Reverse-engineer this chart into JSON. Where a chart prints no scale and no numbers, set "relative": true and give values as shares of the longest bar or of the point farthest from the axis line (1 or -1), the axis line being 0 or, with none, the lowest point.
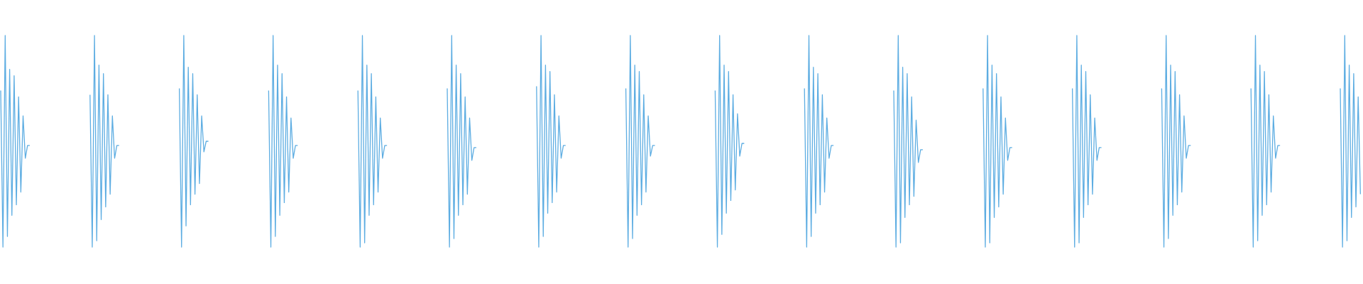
{
  "chart_data": [
    {
      "type": "line",
      "relative": true,
      "marker": "none",
      "line_style": "solid",
      "categories": [
        null,
        null,
        null,
        null,
        null,
        null,
        null,
        null,
        null,
        null,
        null,
        null,
        null,
        null
      ],
      "series": [
        {
          "color": "#5dade2",
          "values": [
            0.74,
            0,
            1,
            0.05,
            0.84,
            0.15,
            0.81,
            0.2,
            0.71,
            0.26,
            0.62,
            0.42,
            0.48,
            0.48
          ]
        }
      ]
    },
    {
      "type": "line",
      "relative": true,
      "marker": "none",
      "line_style": "solid",
      "categories": [
        null,
        null,
        null,
        null,
        null,
        null,
        null,
        null,
        null,
        null,
        null,
        null,
        null,
        null
      ],
      "series": [
        {
          "color": "#5dade2",
          "values": [
            0.72,
            0,
            1,
            0.03,
            0.86,
            0.13,
            0.82,
            0.19,
            0.72,
            0.25,
            0.62,
            0.42,
            0.48,
            0.48
          ]
        }
      ]
    },
    {
      "type": "line",
      "relative": true,
      "marker": "none",
      "line_style": "solid",
      "categories": [
        null,
        null,
        null,
        null,
        null,
        null,
        null,
        null,
        null,
        null,
        null,
        null,
        null,
        null
      ],
      "series": [
        {
          "color": "#5dade2",
          "values": [
            0.75,
            0,
            1,
            0.1,
            0.85,
            0.2,
            0.82,
            0.25,
            0.72,
            0.3,
            0.62,
            0.45,
            0.5,
            0.5
          ]
        }
      ]
    },
    {
      "type": "line",
      "relative": true,
      "marker": "none",
      "line_style": "solid",
      "categories": [
        null,
        null,
        null,
        null,
        null,
        null,
        null,
        null,
        null,
        null,
        null,
        null,
        null,
        null
      ],
      "series": [
        {
          "color": "#5dade2",
          "values": [
            0.74,
            0,
            1,
            0.05,
            0.86,
            0.15,
            0.82,
            0.21,
            0.71,
            0.26,
            0.61,
            0.42,
            0.48,
            0.48
          ]
        }
      ]
    },
    {
      "type": "line",
      "relative": true,
      "marker": "none",
      "line_style": "solid",
      "categories": [
        null,
        null,
        null,
        null,
        null,
        null,
        null,
        null,
        null,
        null,
        null,
        null,
        null,
        null
      ],
      "series": [
        {
          "color": "#5dade2",
          "values": [
            0.74,
            0,
            1,
            0.02,
            0.86,
            0.15,
            0.82,
            0.2,
            0.71,
            0.26,
            0.61,
            0.42,
            0.48,
            0.48
          ]
        }
      ]
    },
    {
      "type": "line",
      "relative": true,
      "marker": "none",
      "line_style": "solid",
      "categories": [
        null,
        null,
        null,
        null,
        null,
        null,
        null,
        null,
        null,
        null,
        null,
        null,
        null,
        null
      ],
      "series": [
        {
          "color": "#5dade2",
          "values": [
            0.75,
            0,
            1,
            0.04,
            0.86,
            0.15,
            0.82,
            0.2,
            0.71,
            0.25,
            0.61,
            0.41,
            0.47,
            0.47
          ]
        }
      ]
    },
    {
      "type": "line",
      "relative": true,
      "marker": "none",
      "line_style": "solid",
      "categories": [
        null,
        null,
        null,
        null,
        null,
        null,
        null,
        null,
        null,
        null,
        null,
        null,
        null,
        null
      ],
      "series": [
        {
          "color": "#5dade2",
          "values": [
            0.76,
            0,
            1,
            0.05,
            0.86,
            0.16,
            0.83,
            0.21,
            0.72,
            0.26,
            0.62,
            0.42,
            0.48,
            0.48
          ]
        }
      ]
    },
    {
      "type": "line",
      "relative": true,
      "marker": "none",
      "line_style": "solid",
      "categories": [
        null,
        null,
        null,
        null,
        null,
        null,
        null,
        null,
        null,
        null,
        null,
        null,
        null,
        null
      ],
      "series": [
        {
          "color": "#5dade2",
          "values": [
            0.75,
            0,
            1,
            0.04,
            0.86,
            0.15,
            0.83,
            0.2,
            0.72,
            0.26,
            0.62,
            0.43,
            0.48,
            0.48
          ]
        }
      ]
    },
    {
      "type": "line",
      "relative": true,
      "marker": "none",
      "line_style": "solid",
      "categories": [
        null,
        null,
        null,
        null,
        null,
        null,
        null,
        null,
        null,
        null,
        null,
        null,
        null,
        null
      ],
      "series": [
        {
          "color": "#5dade2",
          "values": [
            0.74,
            0,
            1,
            0.06,
            0.86,
            0.16,
            0.83,
            0.22,
            0.72,
            0.27,
            0.63,
            0.43,
            0.49,
            0.49
          ]
        }
      ]
    },
    {
      "type": "line",
      "relative": true,
      "marker": "none",
      "line_style": "solid",
      "categories": [
        null,
        null,
        null,
        null,
        null,
        null,
        null,
        null,
        null,
        null,
        null,
        null,
        null,
        null
      ],
      "series": [
        {
          "color": "#5dade2",
          "values": [
            0.75,
            0,
            1,
            0.05,
            0.85,
            0.16,
            0.82,
            0.2,
            0.72,
            0.26,
            0.61,
            0.42,
            0.48,
            0.48
          ]
        }
      ]
    },
    {
      "type": "line",
      "relative": true,
      "marker": "none",
      "line_style": "solid",
      "categories": [
        null,
        null,
        null,
        null,
        null,
        null,
        null,
        null,
        null,
        null,
        null,
        null,
        null,
        null
      ],
      "series": [
        {
          "color": "#5dade2",
          "values": [
            0.74,
            0,
            1,
            0.02,
            0.85,
            0.14,
            0.82,
            0.2,
            0.71,
            0.24,
            0.6,
            0.4,
            0.46,
            0.46
          ]
        }
      ]
    },
    {
      "type": "line",
      "relative": true,
      "marker": "none",
      "line_style": "solid",
      "categories": [
        null,
        null,
        null,
        null,
        null,
        null,
        null,
        null,
        null,
        null,
        null,
        null,
        null,
        null
      ],
      "series": [
        {
          "color": "#5dade2",
          "values": [
            0.75,
            0,
            1,
            0.02,
            0.86,
            0.14,
            0.82,
            0.19,
            0.71,
            0.25,
            0.61,
            0.41,
            0.47,
            0.47
          ]
        }
      ]
    },
    {
      "type": "line",
      "relative": true,
      "marker": "none",
      "line_style": "solid",
      "categories": [
        null,
        null,
        null,
        null,
        null,
        null,
        null,
        null,
        null,
        null,
        null,
        null,
        null,
        null
      ],
      "series": [
        {
          "color": "#5dade2",
          "values": [
            0.75,
            0,
            1,
            0.02,
            0.86,
            0.14,
            0.83,
            0.2,
            0.72,
            0.25,
            0.61,
            0.41,
            0.47,
            0.47
          ]
        }
      ]
    },
    {
      "type": "line",
      "relative": true,
      "marker": "none",
      "line_style": "solid",
      "categories": [
        null,
        null,
        null,
        null,
        null,
        null,
        null,
        null,
        null,
        null,
        null,
        null,
        null,
        null
      ],
      "series": [
        {
          "color": "#5dade2",
          "values": [
            0.75,
            0,
            1,
            0.04,
            0.86,
            0.15,
            0.83,
            0.2,
            0.72,
            0.26,
            0.62,
            0.42,
            0.48,
            0.48
          ]
        }
      ]
    },
    {
      "type": "line",
      "relative": true,
      "marker": "none",
      "line_style": "solid",
      "categories": [
        null,
        null,
        null,
        null,
        null,
        null,
        null,
        null,
        null,
        null,
        null,
        null,
        null,
        null
      ],
      "series": [
        {
          "color": "#5dade2",
          "values": [
            0.75,
            0,
            1,
            0.03,
            0.86,
            0.15,
            0.83,
            0.2,
            0.72,
            0.26,
            0.62,
            0.42,
            0.48,
            0.48
          ]
        }
      ]
    },
    {
      "type": "line",
      "relative": true,
      "marker": "none",
      "line_style": "solid",
      "categories": [
        null,
        null,
        null,
        null,
        null,
        null,
        null,
        null,
        null,
        null
      ],
      "series": [
        {
          "color": "#5dade2",
          "values": [
            0.75,
            0,
            1,
            0.03,
            0.86,
            0.14,
            0.82,
            0.19,
            0.71,
            0.25
          ]
        }
      ]
    }
  ]
}
